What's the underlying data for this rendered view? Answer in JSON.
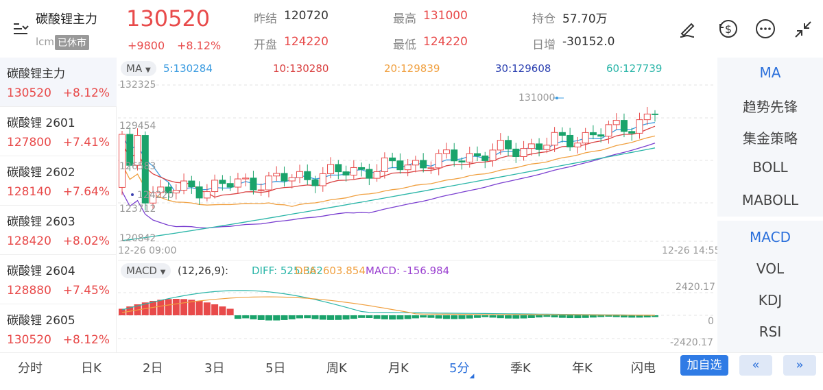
{
  "header": {
    "name": "碳酸锂主力",
    "unit": "lcm",
    "status": "已休市",
    "price": "130520",
    "change": "+9800",
    "change_pct": "+8.12%",
    "prev_close_label": "昨结",
    "prev_close": "120720",
    "open_label": "开盘",
    "open": "124220",
    "high_label": "最高",
    "high": "131000",
    "low_label": "最低",
    "low": "124220",
    "oi_label": "持仓",
    "oi": "57.70万",
    "oi_change_label": "日增",
    "oi_change": "-30152.0",
    "icons": [
      "draw-icon",
      "currency-exchange-icon",
      "more-icon",
      "collapse-icon"
    ]
  },
  "sidebar": {
    "items": [
      {
        "name": "碳酸锂主力",
        "price": "130520",
        "pct": "+8.12%"
      },
      {
        "name": "碳酸锂 2601",
        "price": "127800",
        "pct": "+7.41%"
      },
      {
        "name": "碳酸锂 2602",
        "price": "128140",
        "pct": "+7.64%"
      },
      {
        "name": "碳酸锂 2603",
        "price": "128420",
        "pct": "+8.02%"
      },
      {
        "name": "碳酸锂 2604",
        "price": "128880",
        "pct": "+7.45%"
      },
      {
        "name": "碳酸锂 2605",
        "price": "130520",
        "pct": "+8.12%"
      }
    ]
  },
  "main_chart": {
    "indicator": "MA",
    "ma5": "5:130284",
    "ma10": "10:130280",
    "ma20": "20:129839",
    "ma30": "30:129608",
    "ma60": "60:127739",
    "y_labels": [
      "132325",
      "129454",
      "126583",
      "123712",
      "120842"
    ],
    "high_mark": "131000",
    "low_mark": "124220",
    "time_start": "12-26 09:00",
    "time_end": "12-26 14:55",
    "colors": {
      "up": "#e84a4a",
      "down": "#1aa36b",
      "ma5": "#3a9be0",
      "ma10": "#d94040",
      "ma20": "#f0a040",
      "ma30": "#7a3fd0",
      "ma60": "#2ab5a8"
    }
  },
  "macd_chart": {
    "indicator": "MACD",
    "params": "(12,26,9):",
    "diff": "DIFF: 525.362",
    "dea": "DEA: 603.854",
    "macd": "MACD: -156.984",
    "y_top": "2420.17",
    "y_mid": "0",
    "y_bottom": "-2420.17"
  },
  "right_panel": {
    "main_items": [
      "MA",
      "趋势先锋",
      "集金策略",
      "BOLL",
      "MABOLL"
    ],
    "sub_items": [
      "MACD",
      "VOL",
      "KDJ",
      "RSI"
    ]
  },
  "tabs": [
    "分时",
    "日K",
    "2日",
    "3日",
    "5日",
    "周K",
    "月K",
    "5分",
    "季K",
    "年K",
    "闪电"
  ],
  "selected_tab": "5分",
  "add_button": "加自选",
  "prev_icon": "«",
  "next_icon": "»"
}
